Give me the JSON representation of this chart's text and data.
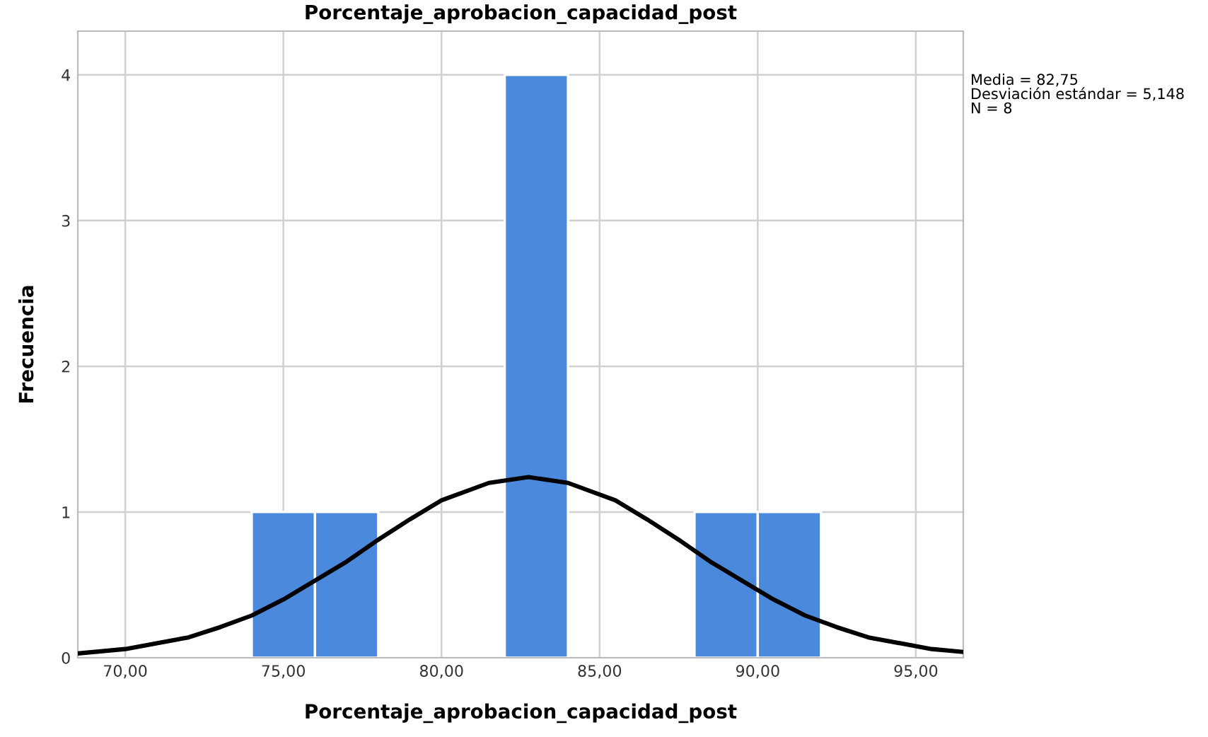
{
  "chart_data": {
    "type": "histogram",
    "title": "Porcentaje_aprobacion_capacidad_post",
    "xlabel": "Porcentaje_aprobacion_capacidad_post",
    "ylabel": "Frecuencia",
    "bins": [
      74,
      76,
      78,
      80,
      82,
      84,
      86,
      88,
      90,
      92
    ],
    "values": [
      1,
      1,
      0,
      0,
      4,
      0,
      0,
      1,
      1
    ],
    "color": "#4a89dc",
    "series": [
      {
        "type": "line",
        "color": "#000000",
        "x": [
          68.5,
          70,
          72,
          73,
          74,
          75,
          76,
          77,
          78,
          79,
          80,
          81.5,
          82.75,
          84,
          85.5,
          86.5,
          87.5,
          88.5,
          89.5,
          90.5,
          91.5,
          92.5,
          93.5,
          95.5,
          96.5
        ],
        "values": [
          0.03,
          0.06,
          0.14,
          0.21,
          0.29,
          0.4,
          0.53,
          0.66,
          0.81,
          0.95,
          1.08,
          1.2,
          1.24,
          1.2,
          1.08,
          0.95,
          0.81,
          0.66,
          0.53,
          0.4,
          0.29,
          0.21,
          0.14,
          0.06,
          0.04
        ]
      }
    ],
    "xlim": [
      68.5,
      96.5
    ],
    "xticks": [
      {
        "value": 70,
        "label": "70,00"
      },
      {
        "value": 75,
        "label": "75,00"
      },
      {
        "value": 80,
        "label": "80,00"
      },
      {
        "value": 85,
        "label": "85,00"
      },
      {
        "value": 90,
        "label": "90,00"
      },
      {
        "value": 95,
        "label": "95,00"
      }
    ],
    "ylim": [
      0,
      4.3
    ],
    "yticks": [
      0,
      1,
      2,
      3,
      4
    ],
    "grid": true,
    "legend": false,
    "annotations": [
      "Media = 82,75",
      "Desviación estándar = 5,148",
      "N = 8"
    ]
  }
}
